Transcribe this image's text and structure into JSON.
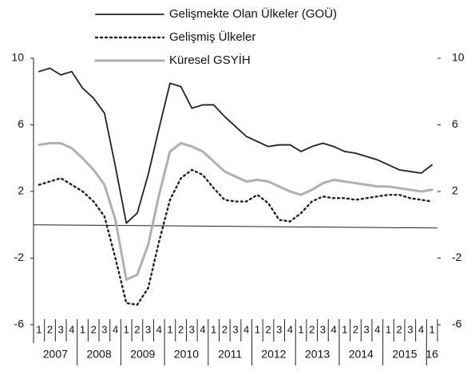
{
  "chart_data": {
    "type": "line",
    "categories": [
      "1",
      "2",
      "3",
      "4",
      "1",
      "2",
      "3",
      "4",
      "1",
      "2",
      "3",
      "4",
      "1",
      "2",
      "3",
      "4",
      "1",
      "2",
      "3",
      "4",
      "1",
      "2",
      "3",
      "4",
      "1",
      "2",
      "3",
      "4",
      "1",
      "2",
      "3",
      "4",
      "1",
      "2",
      "3",
      "4",
      "1"
    ],
    "year_labels": [
      "2007",
      "2008",
      "2009",
      "2010",
      "2011",
      "2012",
      "2013",
      "2014",
      "2015",
      "16"
    ],
    "series": [
      {
        "name": "Gelişmekte Olan Ülkeler (GOÜ)",
        "color": "#222222",
        "style": "solid",
        "values": [
          9.2,
          9.4,
          9.0,
          9.2,
          8.2,
          7.6,
          6.7,
          3.5,
          0.1,
          0.7,
          3.0,
          5.8,
          8.5,
          8.3,
          7.0,
          7.2,
          7.2,
          6.5,
          5.9,
          5.3,
          5.0,
          4.7,
          4.8,
          4.8,
          4.4,
          4.7,
          4.9,
          4.7,
          4.4,
          4.3,
          4.1,
          3.9,
          3.6,
          3.3,
          3.2,
          3.1,
          3.6
        ]
      },
      {
        "name": "Gelişmiş Ülkeler",
        "color": "#222222",
        "style": "dotted",
        "values": [
          2.4,
          2.6,
          2.8,
          2.4,
          2.0,
          1.4,
          0.5,
          -2.0,
          -4.7,
          -4.8,
          -3.8,
          -1.0,
          1.5,
          2.8,
          3.3,
          3.0,
          2.2,
          1.5,
          1.4,
          1.4,
          1.8,
          1.3,
          0.3,
          0.2,
          0.7,
          1.4,
          1.7,
          1.6,
          1.6,
          1.5,
          1.6,
          1.7,
          1.8,
          1.8,
          1.6,
          1.5,
          1.4
        ]
      },
      {
        "name": "Küresel GSYİH",
        "color": "#b0b0b0",
        "style": "solid",
        "values": [
          4.8,
          4.9,
          4.9,
          4.6,
          4.0,
          3.3,
          2.4,
          0.3,
          -3.3,
          -3.0,
          -1.2,
          1.8,
          4.4,
          4.9,
          4.7,
          4.4,
          3.8,
          3.2,
          2.9,
          2.6,
          2.7,
          2.6,
          2.3,
          2.0,
          1.8,
          2.1,
          2.5,
          2.7,
          2.6,
          2.5,
          2.4,
          2.3,
          2.3,
          2.2,
          2.1,
          2.0,
          2.1
        ]
      }
    ],
    "ylim": [
      -6,
      10
    ],
    "yticks": [
      -6,
      -2,
      2,
      6,
      10
    ],
    "y2lim": [
      -6,
      10
    ],
    "y2ticks": [
      -6,
      -2,
      2,
      6,
      10
    ]
  }
}
